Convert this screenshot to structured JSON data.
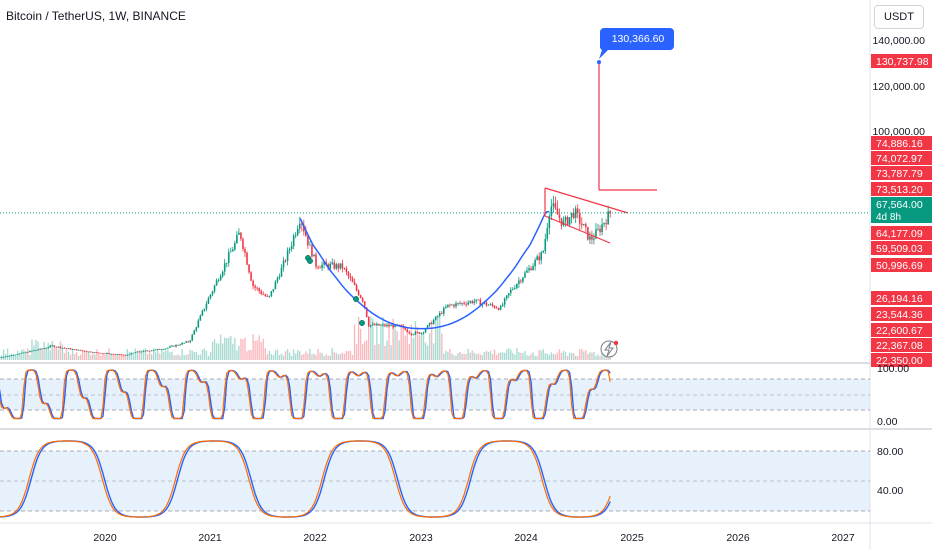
{
  "header": {
    "symbol": "Bitcoin / TetherUS",
    "interval": "1W",
    "exchange": "BINANCE",
    "currency": "USDT"
  },
  "chart_data": [
    {
      "type": "candlestick",
      "title": "Bitcoin / TetherUS, 1W, BINANCE",
      "y_axis_labels": [
        "140,000.00",
        "120,000.00",
        "100,000.00"
      ],
      "x_axis_labels": [
        "2020",
        "2021",
        "2022",
        "2023",
        "2024",
        "2025",
        "2026",
        "2027"
      ],
      "price_tags": [
        {
          "value": "130,737.98",
          "color": "#f23645"
        },
        {
          "value": "74,886.16",
          "color": "#f23645"
        },
        {
          "value": "74,072.97",
          "color": "#f23645"
        },
        {
          "value": "73,787.79",
          "color": "#f23645"
        },
        {
          "value": "73,513.20",
          "color": "#f23645"
        },
        {
          "value": "67,564.00",
          "color": "#089981",
          "sub": "4d 8h"
        },
        {
          "value": "64,177.09",
          "color": "#f23645"
        },
        {
          "value": "59,509.03",
          "color": "#f23645"
        },
        {
          "value": "50,996.69",
          "color": "#f23645"
        },
        {
          "value": "26,194.16",
          "color": "#f23645"
        },
        {
          "value": "23,544.36",
          "color": "#f23645"
        },
        {
          "value": "22,600.67",
          "color": "#f23645"
        },
        {
          "value": "22,367.08",
          "color": "#f23645"
        },
        {
          "value": "22,350.00",
          "color": "#f23645"
        }
      ],
      "callout": {
        "label": "130,366.60"
      },
      "current_price": 67564,
      "approx_closes": [
        {
          "date": "2019-07",
          "close": 10500
        },
        {
          "date": "2020-01",
          "close": 8500
        },
        {
          "date": "2020-07",
          "close": 11500
        },
        {
          "date": "2021-01",
          "close": 33000
        },
        {
          "date": "2021-04",
          "close": 58000
        },
        {
          "date": "2021-07",
          "close": 35000
        },
        {
          "date": "2021-11",
          "close": 65000
        },
        {
          "date": "2022-03",
          "close": 45000
        },
        {
          "date": "2022-06",
          "close": 20000
        },
        {
          "date": "2022-11",
          "close": 16500
        },
        {
          "date": "2023-03",
          "close": 28000
        },
        {
          "date": "2023-10",
          "close": 34000
        },
        {
          "date": "2024-03",
          "close": 71000
        },
        {
          "date": "2024-08",
          "close": 58000
        },
        {
          "date": "2024-10",
          "close": 67564
        }
      ]
    },
    {
      "type": "line",
      "name": "oscillator-1",
      "y_axis_labels": [
        "100.00",
        "0.00"
      ],
      "range": [
        0,
        100
      ]
    },
    {
      "type": "line",
      "name": "oscillator-2",
      "y_axis_labels": [
        "80.00",
        "40.00"
      ],
      "range": [
        20,
        100
      ]
    }
  ]
}
